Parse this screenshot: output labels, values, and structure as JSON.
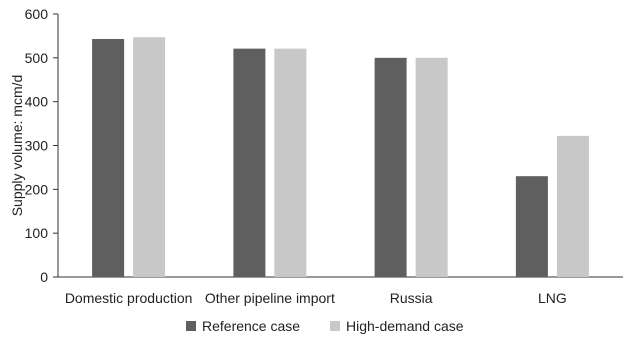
{
  "chart_data": {
    "type": "bar",
    "title": "",
    "xlabel": "",
    "ylabel": "Supply volume: mcm/d",
    "categories": [
      "Domestic production",
      "Other pipeline import",
      "Russia",
      "LNG"
    ],
    "series": [
      {
        "name": "Reference case",
        "color": "#5f5f5f",
        "values": [
          543,
          521,
          500,
          230
        ]
      },
      {
        "name": "High-demand case",
        "color": "#c8c8c8",
        "values": [
          547,
          521,
          500,
          322
        ]
      }
    ],
    "ylim": [
      0,
      600
    ],
    "yticks": [
      0,
      100,
      200,
      300,
      400,
      500,
      600
    ],
    "grid": false,
    "legend_position": "bottom-center"
  }
}
